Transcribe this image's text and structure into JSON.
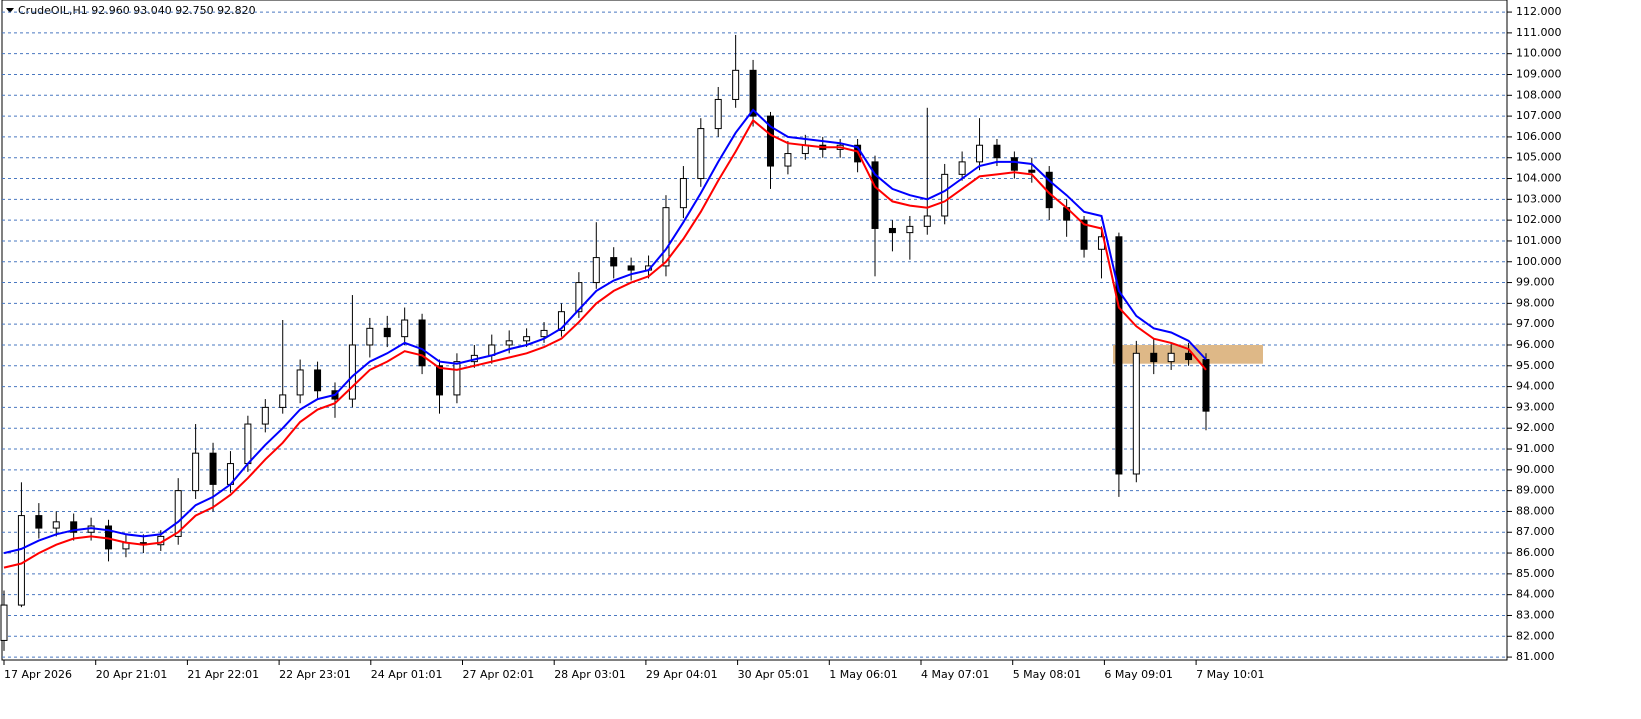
{
  "chart_data": {
    "type": "candlestick",
    "title": "CrudeOIL,H1  92.960 93.040 92.750 92.820",
    "x_labels": [
      "17 Apr 2026",
      "20 Apr 21:01",
      "21 Apr 22:01",
      "22 Apr 23:01",
      "24 Apr 01:01",
      "27 Apr 02:01",
      "28 Apr 03:01",
      "29 Apr 04:01",
      "30 Apr 05:01",
      "1 May 06:01",
      "4 May 07:01",
      "5 May 08:01",
      "6 May 09:01",
      "7 May 10:01"
    ],
    "open": [
      81.8,
      83.5,
      87.8,
      87.2,
      87.5,
      87.0,
      87.3,
      86.2,
      86.5,
      86.4,
      86.8,
      89.0,
      90.8,
      89.3,
      90.3,
      92.2,
      93.0,
      93.6,
      94.8,
      93.8,
      93.4,
      96.0,
      96.8,
      96.4,
      97.2,
      95.0,
      93.6,
      95.2,
      95.5,
      96.0,
      96.2,
      96.4,
      96.7,
      97.6,
      99.0,
      100.2,
      99.8,
      99.6,
      99.8,
      102.6,
      104.0,
      106.4,
      107.8,
      109.2,
      107.0,
      104.6,
      105.2,
      105.6,
      105.4,
      105.6,
      104.8,
      101.6,
      101.4,
      101.7,
      102.2,
      104.2,
      104.8,
      105.6,
      105.0,
      104.4,
      104.3,
      102.6,
      102.0,
      100.6,
      101.2,
      89.8,
      95.6,
      95.2,
      95.6,
      95.3
    ],
    "high": [
      84.2,
      89.4,
      88.4,
      88.0,
      87.9,
      87.7,
      87.6,
      86.9,
      86.9,
      87.1,
      89.6,
      92.2,
      91.3,
      90.9,
      92.6,
      93.4,
      97.2,
      95.3,
      95.2,
      94.2,
      98.4,
      97.3,
      97.4,
      97.8,
      97.5,
      95.3,
      95.6,
      96.0,
      96.5,
      96.7,
      96.8,
      97.1,
      98.0,
      99.5,
      101.9,
      100.7,
      100.2,
      100.3,
      103.2,
      104.6,
      106.9,
      108.4,
      110.9,
      109.7,
      107.2,
      105.8,
      106.1,
      106.0,
      105.9,
      105.9,
      105.1,
      102.0,
      102.2,
      107.4,
      104.7,
      105.3,
      106.9,
      105.9,
      105.3,
      105.0,
      104.6,
      103.0,
      102.2,
      101.7,
      101.4,
      96.2,
      96.3,
      96.1,
      96.1,
      95.6
    ],
    "low": [
      81.3,
      83.4,
      86.7,
      86.8,
      86.6,
      86.6,
      85.6,
      85.8,
      86.0,
      86.1,
      86.4,
      88.6,
      88.0,
      88.9,
      89.9,
      91.8,
      92.7,
      93.2,
      93.4,
      92.5,
      93.0,
      95.4,
      95.9,
      96.0,
      94.6,
      92.7,
      93.2,
      94.9,
      95.1,
      95.6,
      95.9,
      96.1,
      96.4,
      97.3,
      98.7,
      99.2,
      99.1,
      99.2,
      99.3,
      102.1,
      103.6,
      106.0,
      107.4,
      106.5,
      103.5,
      104.2,
      104.9,
      105.0,
      105.0,
      104.3,
      99.3,
      100.5,
      100.1,
      101.3,
      101.8,
      103.9,
      104.4,
      104.6,
      104.0,
      103.8,
      102.0,
      101.2,
      100.2,
      99.2,
      88.7,
      89.4,
      94.6,
      94.8,
      95.0,
      91.9
    ],
    "close": [
      83.5,
      87.8,
      87.2,
      87.5,
      87.0,
      87.3,
      86.2,
      86.5,
      86.4,
      86.8,
      89.0,
      90.8,
      89.3,
      90.3,
      92.2,
      93.0,
      93.6,
      94.8,
      93.8,
      93.4,
      96.0,
      96.8,
      96.4,
      97.2,
      95.0,
      93.6,
      95.2,
      95.5,
      96.0,
      96.2,
      96.4,
      96.7,
      97.6,
      99.0,
      100.2,
      99.8,
      99.6,
      99.8,
      102.6,
      104.0,
      106.4,
      107.8,
      109.2,
      107.0,
      104.6,
      105.2,
      105.6,
      105.4,
      105.6,
      104.8,
      101.6,
      101.4,
      101.7,
      102.2,
      104.2,
      104.8,
      105.6,
      105.0,
      104.4,
      104.3,
      102.6,
      102.0,
      100.6,
      101.2,
      89.8,
      95.6,
      95.2,
      95.6,
      95.3,
      92.82
    ],
    "candle_color": "#000000",
    "lines": [
      {
        "color": "#0000ff",
        "values": [
          86.0,
          86.2,
          86.6,
          86.9,
          87.1,
          87.2,
          87.1,
          86.9,
          86.8,
          86.9,
          87.5,
          88.3,
          88.7,
          89.3,
          90.3,
          91.2,
          92.0,
          92.9,
          93.4,
          93.6,
          94.5,
          95.2,
          95.6,
          96.1,
          95.8,
          95.2,
          95.1,
          95.3,
          95.5,
          95.8,
          96.0,
          96.3,
          96.8,
          97.7,
          98.6,
          99.1,
          99.4,
          99.6,
          100.6,
          101.9,
          103.3,
          104.8,
          106.2,
          107.3,
          106.5,
          106.0,
          105.9,
          105.8,
          105.7,
          105.5,
          104.2,
          103.5,
          103.2,
          103.0,
          103.4,
          104.0,
          104.6,
          104.8,
          104.8,
          104.7,
          103.9,
          103.2,
          102.4,
          102.2,
          98.6,
          97.4,
          96.8,
          96.6,
          96.2,
          95.3
        ]
      },
      {
        "color": "#ff0000",
        "values": [
          85.3,
          85.5,
          86.0,
          86.4,
          86.7,
          86.8,
          86.7,
          86.5,
          86.4,
          86.5,
          87.0,
          87.8,
          88.2,
          88.8,
          89.6,
          90.5,
          91.3,
          92.3,
          92.9,
          93.2,
          94.0,
          94.8,
          95.2,
          95.7,
          95.5,
          94.9,
          94.8,
          95.0,
          95.2,
          95.4,
          95.6,
          95.9,
          96.3,
          97.1,
          98.0,
          98.6,
          99.0,
          99.3,
          100.0,
          101.1,
          102.4,
          103.9,
          105.3,
          106.8,
          106.1,
          105.7,
          105.6,
          105.5,
          105.5,
          105.3,
          103.6,
          102.9,
          102.7,
          102.6,
          102.9,
          103.5,
          104.1,
          104.2,
          104.3,
          104.2,
          103.3,
          102.6,
          101.8,
          101.6,
          97.8,
          96.9,
          96.3,
          96.1,
          95.8,
          94.8
        ]
      }
    ],
    "zone": {
      "from": 95.1,
      "to": 96.0,
      "color": "#deb887"
    },
    "ylim": [
      80.86,
      112.58
    ],
    "yticks": [
      {
        "value": 81,
        "label": "81.000"
      },
      {
        "value": 82,
        "label": "82.000"
      },
      {
        "value": 83,
        "label": "83.000"
      },
      {
        "value": 84,
        "label": "84.000"
      },
      {
        "value": 85,
        "label": "85.000"
      },
      {
        "value": 86,
        "label": "86.000"
      },
      {
        "value": 87,
        "label": "87.000"
      },
      {
        "value": 88,
        "label": "88.000"
      },
      {
        "value": 89,
        "label": "89.000"
      },
      {
        "value": 90,
        "label": "90.000"
      },
      {
        "value": 91,
        "label": "91.000"
      },
      {
        "value": 92,
        "label": "92.000"
      },
      {
        "value": 93,
        "label": "93.000"
      },
      {
        "value": 94,
        "label": "94.000"
      },
      {
        "value": 95,
        "label": "95.000"
      },
      {
        "value": 96,
        "label": "96.000"
      },
      {
        "value": 97,
        "label": "97.000"
      },
      {
        "value": 98,
        "label": "98.000"
      },
      {
        "value": 99,
        "label": "99.000"
      },
      {
        "value": 100,
        "label": "100.000"
      },
      {
        "value": 101,
        "label": "101.000"
      },
      {
        "value": 102,
        "label": "102.000"
      },
      {
        "value": 103,
        "label": "103.000"
      },
      {
        "value": 104,
        "label": "104.000"
      },
      {
        "value": 105,
        "label": "105.000"
      },
      {
        "value": 106,
        "label": "106.000"
      },
      {
        "value": 107,
        "label": "107.000"
      },
      {
        "value": 108,
        "label": "108.000"
      },
      {
        "value": 109,
        "label": "109.000"
      },
      {
        "value": 110,
        "label": "110.000"
      },
      {
        "value": 111,
        "label": "111.000"
      },
      {
        "value": 112,
        "label": "112.000"
      }
    ],
    "grid": true,
    "grid_color": "#4a78c0"
  }
}
